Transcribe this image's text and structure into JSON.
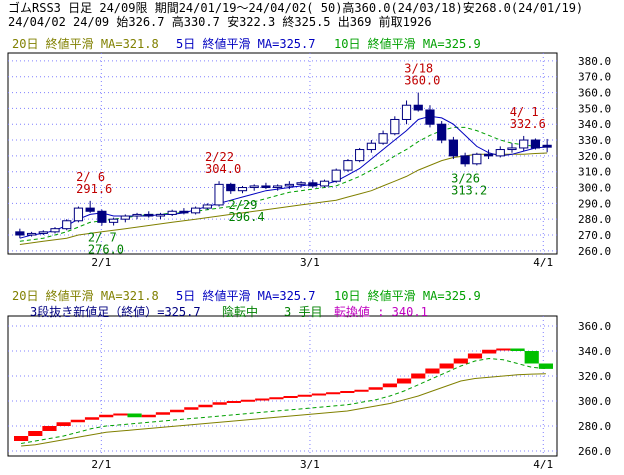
{
  "header": {
    "line1": "ゴムRSS3 日足 24/09限 期間24/01/19～24/04/02( 50)高360.0(24/03/18)安268.0(24/01/19)",
    "line2": "24/04/02 24/09 始326.7 高330.7 安322.3 終325.5 出369 前取1926"
  },
  "legend": {
    "ma20": "20日 終値平滑 MA=321.8",
    "ma5": "5日 終値平滑 MA=325.7",
    "ma10": "10日 終値平滑 MA=325.9"
  },
  "lower_info": {
    "prefix": "3段抜き新値足（終値）=325.7",
    "phase": "陰転中",
    "step": "3 手目",
    "reversal": "転換値 : 340.1"
  },
  "colors": {
    "ma5": "#0000c0",
    "ma10": "#00a000",
    "ma20": "#808000",
    "up": "#ff0000",
    "down": "#00c000",
    "candle_down": "#000080",
    "label_high": "#c00000",
    "label_low": "#008000"
  },
  "chart_data": [
    {
      "type": "candlestick",
      "x_ticks": [
        "2/1",
        "3/1",
        "4/1"
      ],
      "y_ticks": [
        260,
        270,
        280,
        290,
        300,
        310,
        320,
        330,
        340,
        350,
        360,
        370,
        380
      ],
      "ylim": [
        258,
        385
      ],
      "annotations": [
        {
          "date": "2/6",
          "text_date": "2/ 6",
          "value": "291.6",
          "kind": "high"
        },
        {
          "date": "2/7",
          "text_date": "2/ 7",
          "value": "276.0",
          "kind": "low"
        },
        {
          "date": "2/22",
          "text_date": "2/22",
          "value": "304.0",
          "kind": "high"
        },
        {
          "date": "2/29",
          "text_date": "2/29",
          "value": "296.4",
          "kind": "low"
        },
        {
          "date": "3/18",
          "text_date": "3/18",
          "value": "360.0",
          "kind": "high"
        },
        {
          "date": "3/26",
          "text_date": "3/26",
          "value": "313.2",
          "kind": "low"
        },
        {
          "date": "4/1",
          "text_date": "4/ 1",
          "value": "332.6",
          "kind": "high"
        }
      ],
      "candles": [
        [
          272,
          274,
          268,
          270
        ],
        [
          270,
          272,
          269,
          271
        ],
        [
          271,
          273,
          270,
          272
        ],
        [
          272,
          275,
          271,
          274
        ],
        [
          274,
          280,
          273,
          279
        ],
        [
          279,
          288,
          278,
          287
        ],
        [
          287,
          291.6,
          284,
          285
        ],
        [
          285,
          286,
          276,
          278
        ],
        [
          278,
          281,
          276,
          280
        ],
        [
          280,
          283,
          278,
          282
        ],
        [
          282,
          284,
          280,
          283
        ],
        [
          283,
          285,
          281,
          282
        ],
        [
          282,
          284,
          280,
          283
        ],
        [
          283,
          286,
          282,
          285
        ],
        [
          285,
          287,
          283,
          284
        ],
        [
          284,
          288,
          283,
          287
        ],
        [
          287,
          290,
          286,
          289
        ],
        [
          289,
          304,
          288,
          302
        ],
        [
          302,
          303,
          296,
          298
        ],
        [
          298,
          301,
          296.4,
          300
        ],
        [
          300,
          302,
          298,
          301
        ],
        [
          301,
          303,
          299,
          300
        ],
        [
          300,
          302,
          298,
          301
        ],
        [
          301,
          304,
          299,
          302
        ],
        [
          302,
          304,
          300,
          303
        ],
        [
          303,
          305,
          300,
          301
        ],
        [
          301,
          305,
          300,
          304
        ],
        [
          304,
          312,
          303,
          311
        ],
        [
          311,
          318,
          310,
          317
        ],
        [
          317,
          325,
          316,
          324
        ],
        [
          324,
          330,
          322,
          328
        ],
        [
          328,
          336,
          327,
          334
        ],
        [
          334,
          345,
          333,
          343
        ],
        [
          343,
          355,
          340,
          352
        ],
        [
          352,
          360,
          348,
          349
        ],
        [
          349,
          352,
          338,
          340
        ],
        [
          340,
          342,
          328,
          330
        ],
        [
          330,
          332,
          318,
          320
        ],
        [
          320,
          322,
          313.2,
          315
        ],
        [
          315,
          322,
          314,
          321
        ],
        [
          321,
          324,
          318,
          320
        ],
        [
          320,
          326,
          319,
          324
        ],
        [
          324,
          328,
          322,
          325
        ],
        [
          325,
          332.6,
          323,
          330
        ],
        [
          330,
          331,
          324,
          325
        ],
        [
          326.7,
          330.7,
          322.3,
          325.5
        ]
      ],
      "ma5": [
        268,
        270,
        271,
        273,
        276,
        280,
        283,
        284,
        282,
        282,
        282,
        282,
        283,
        283,
        284,
        286,
        288,
        290,
        292,
        294,
        296,
        298,
        299,
        300,
        301,
        302,
        302,
        304,
        308,
        312,
        318,
        324,
        330,
        336,
        343,
        345,
        344,
        340,
        333,
        326,
        322,
        320,
        321,
        323,
        325,
        325.7
      ],
      "ma10": [
        266,
        267,
        268,
        270,
        272,
        275,
        278,
        279,
        280,
        281,
        282,
        283,
        283,
        284,
        284,
        285,
        286,
        287,
        288,
        289,
        291,
        293,
        295,
        297,
        298,
        299,
        300,
        301,
        304,
        307,
        311,
        315,
        320,
        324,
        329,
        333,
        336,
        338,
        338,
        336,
        333,
        330,
        328,
        327,
        326,
        325.9
      ],
      "ma20": [
        264,
        265,
        266,
        267,
        268,
        270,
        271,
        272,
        273,
        274,
        275,
        276,
        277,
        278,
        279,
        280,
        281,
        282,
        283,
        284,
        285,
        286,
        287,
        288,
        289,
        290,
        291,
        292,
        294,
        296,
        298,
        301,
        304,
        307,
        311,
        314,
        317,
        319,
        320,
        321,
        321,
        321,
        321,
        321,
        321.5,
        321.8
      ]
    },
    {
      "type": "new-price-bars",
      "x_ticks": [
        "2/1",
        "3/1",
        "4/1"
      ],
      "y_ticks": [
        260,
        280,
        300,
        320,
        340,
        360
      ],
      "ylim": [
        256,
        368
      ],
      "bars": [
        {
          "from": 268,
          "to": 272,
          "dir": "up"
        },
        {
          "from": 272,
          "to": 276,
          "dir": "up"
        },
        {
          "from": 276,
          "to": 280,
          "dir": "up"
        },
        {
          "from": 280,
          "to": 283,
          "dir": "up"
        },
        {
          "from": 283,
          "to": 285,
          "dir": "up"
        },
        {
          "from": 285,
          "to": 287,
          "dir": "up"
        },
        {
          "from": 287,
          "to": 289,
          "dir": "up"
        },
        {
          "from": 289,
          "to": 290,
          "dir": "up"
        },
        {
          "from": 290,
          "to": 287,
          "dir": "down"
        },
        {
          "from": 287,
          "to": 289,
          "dir": "up"
        },
        {
          "from": 289,
          "to": 291,
          "dir": "up"
        },
        {
          "from": 291,
          "to": 293,
          "dir": "up"
        },
        {
          "from": 293,
          "to": 295,
          "dir": "up"
        },
        {
          "from": 295,
          "to": 297,
          "dir": "up"
        },
        {
          "from": 297,
          "to": 299,
          "dir": "up"
        },
        {
          "from": 299,
          "to": 300,
          "dir": "up"
        },
        {
          "from": 300,
          "to": 301,
          "dir": "up"
        },
        {
          "from": 301,
          "to": 302,
          "dir": "up"
        },
        {
          "from": 302,
          "to": 303,
          "dir": "up"
        },
        {
          "from": 303,
          "to": 304,
          "dir": "up"
        },
        {
          "from": 304,
          "to": 305,
          "dir": "up"
        },
        {
          "from": 305,
          "to": 306,
          "dir": "up"
        },
        {
          "from": 306,
          "to": 307,
          "dir": "up"
        },
        {
          "from": 307,
          "to": 308,
          "dir": "up"
        },
        {
          "from": 308,
          "to": 309,
          "dir": "up"
        },
        {
          "from": 309,
          "to": 311,
          "dir": "up"
        },
        {
          "from": 311,
          "to": 314,
          "dir": "up"
        },
        {
          "from": 314,
          "to": 318,
          "dir": "up"
        },
        {
          "from": 318,
          "to": 322,
          "dir": "up"
        },
        {
          "from": 322,
          "to": 326,
          "dir": "up"
        },
        {
          "from": 326,
          "to": 330,
          "dir": "up"
        },
        {
          "from": 330,
          "to": 334,
          "dir": "up"
        },
        {
          "from": 334,
          "to": 338,
          "dir": "up"
        },
        {
          "from": 338,
          "to": 341,
          "dir": "up"
        },
        {
          "from": 341,
          "to": 342,
          "dir": "up"
        },
        {
          "from": 342,
          "to": 340,
          "dir": "down"
        },
        {
          "from": 340,
          "to": 330,
          "dir": "down"
        },
        {
          "from": 330,
          "to": 325.7,
          "dir": "down"
        }
      ],
      "ma20": [
        264,
        265,
        267,
        269,
        271,
        273,
        275,
        276,
        277,
        278,
        279,
        280,
        281,
        282,
        283,
        284,
        285,
        286,
        287,
        288,
        289,
        290,
        291,
        292,
        294,
        296,
        298,
        301,
        304,
        308,
        312,
        316,
        318,
        319,
        320,
        321,
        321.5,
        321.8
      ],
      "ma10": [
        266,
        268,
        270,
        272,
        275,
        278,
        280,
        281,
        282,
        283,
        284,
        285,
        286,
        287,
        288,
        289,
        290,
        291,
        292,
        293,
        294,
        295,
        296,
        297,
        299,
        301,
        304,
        308,
        313,
        318,
        323,
        328,
        332,
        334,
        333,
        330,
        327,
        325.9
      ]
    }
  ]
}
